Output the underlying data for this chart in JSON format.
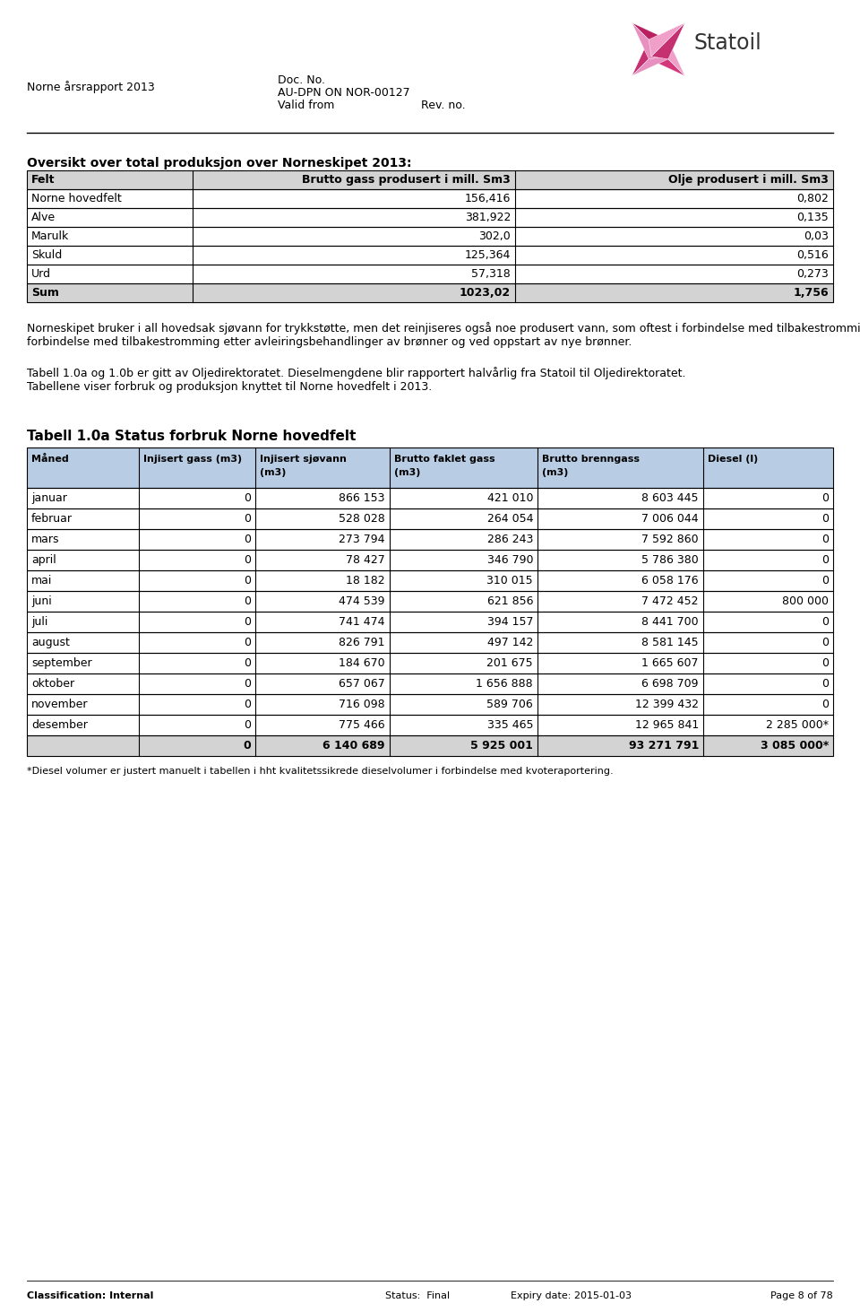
{
  "page_title_left": "Norne årsrapport 2013",
  "doc_no_label": "Doc. No.",
  "doc_no_value": "AU-DPN ON NOR-00127",
  "valid_from_label": "Valid from",
  "rev_no_label": "Rev. no.",
  "section_title": "Oversikt over total produksjon over Norneskipet 2013:",
  "table1_headers": [
    "Felt",
    "Brutto gass produsert i mill. Sm3",
    "Olje produsert i mill. Sm3"
  ],
  "table1_rows": [
    [
      "Norne hovedfelt",
      "156,416",
      "0,802"
    ],
    [
      "Alve",
      "381,922",
      "0,135"
    ],
    [
      "Marulk",
      "302,0",
      "0,03"
    ],
    [
      "Skuld",
      "125,364",
      "0,516"
    ],
    [
      "Urd",
      "57,318",
      "0,273"
    ],
    [
      "Sum",
      "1023,02",
      "1,756"
    ]
  ],
  "paragraph1": "Norneskipet bruker i all hovedsak sjøvann for trykkstøtte, men det reinjiseres også noe produsert vann, som oftest i forbindelse med tilbakestromming etter avleiringsbehandlinger av brønner og ved oppstart av nye brønner.",
  "paragraph2": "Tabell 1.0a og 1.0b er gitt av Oljedirektoratet. Dieselmengdene blir rapportert halvårlig fra Statoil til Oljedirektoratet.\nTabellene viser forbruk og produksjon knyttet til Norne hovedfelt i 2013.",
  "table2_title": "Tabell 1.0a Status forbruk Norne hovedfelt",
  "table2_headers": [
    "Måned",
    "Injisert gass (m3)",
    "Injisert sjøvann\n(m3)",
    "Brutto faklet gass\n(m3)",
    "Brutto brenngass\n(m3)",
    "Diesel (l)"
  ],
  "table2_rows": [
    [
      "januar",
      "0",
      "866 153",
      "421 010",
      "8 603 445",
      "0"
    ],
    [
      "februar",
      "0",
      "528 028",
      "264 054",
      "7 006 044",
      "0"
    ],
    [
      "mars",
      "0",
      "273 794",
      "286 243",
      "7 592 860",
      "0"
    ],
    [
      "april",
      "0",
      "78 427",
      "346 790",
      "5 786 380",
      "0"
    ],
    [
      "mai",
      "0",
      "18 182",
      "310 015",
      "6 058 176",
      "0"
    ],
    [
      "juni",
      "0",
      "474 539",
      "621 856",
      "7 472 452",
      "800 000"
    ],
    [
      "juli",
      "0",
      "741 474",
      "394 157",
      "8 441 700",
      "0"
    ],
    [
      "august",
      "0",
      "826 791",
      "497 142",
      "8 581 145",
      "0"
    ],
    [
      "september",
      "0",
      "184 670",
      "201 675",
      "1 665 607",
      "0"
    ],
    [
      "oktober",
      "0",
      "657 067",
      "1 656 888",
      "6 698 709",
      "0"
    ],
    [
      "november",
      "0",
      "716 098",
      "589 706",
      "12 399 432",
      "0"
    ],
    [
      "desember",
      "0",
      "775 466",
      "335 465",
      "12 965 841",
      "2 285 000*"
    ],
    [
      "",
      "0",
      "6 140 689",
      "5 925 001",
      "93 271 791",
      "3 085 000*"
    ]
  ],
  "footnote": "*Diesel volumer er justert manuelt i tabellen i hht kvalitetssikrede dieselvolumer i forbindelse med kvoteraportering.",
  "footer_left": "Classification: Internal",
  "footer_center_label": "Status:",
  "footer_center_value": "Final",
  "footer_expiry_label": "Expiry date:",
  "footer_expiry_value": "2015-01-03",
  "footer_right": "Page 8 of 78",
  "header_color": "#d3d3d3",
  "sum_row_color": "#d3d3d3",
  "table2_header_color": "#b8cce4",
  "bg_color": "#ffffff",
  "text_color": "#000000"
}
